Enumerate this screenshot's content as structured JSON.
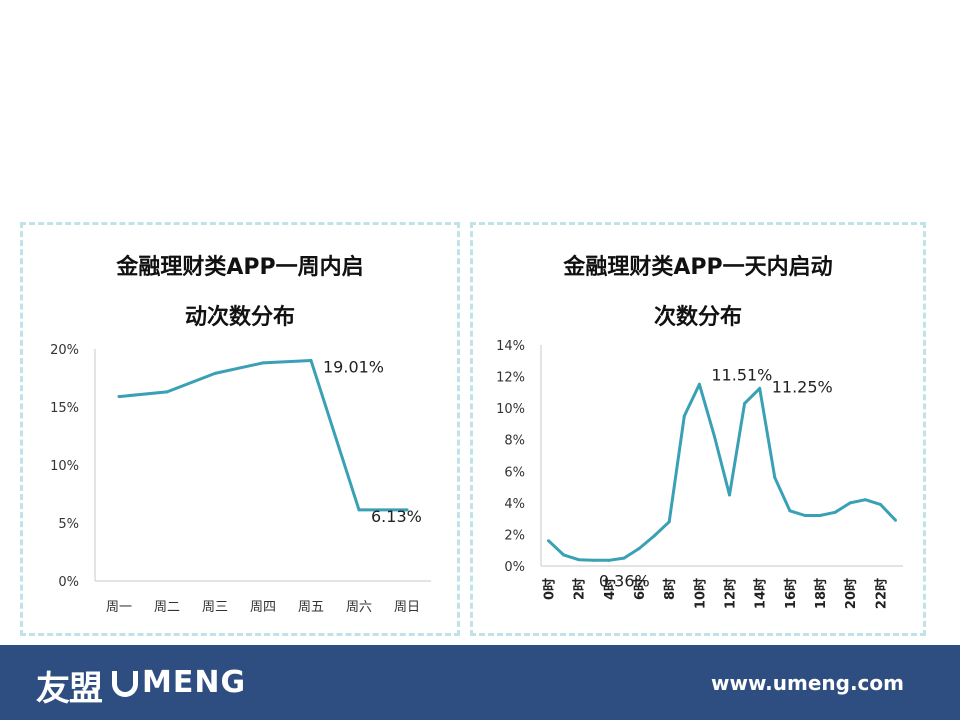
{
  "chart_data": [
    {
      "type": "line",
      "title_line1": "金融理财类APP一周内启",
      "title_line2": "动次数分布",
      "categories": [
        "周一",
        "周二",
        "周三",
        "周四",
        "周五",
        "周六",
        "周日"
      ],
      "values": [
        15.9,
        16.3,
        17.9,
        18.8,
        19.01,
        6.13,
        6.13
      ],
      "ylim": [
        0,
        20
      ],
      "yticks": [
        "0%",
        "5%",
        "10%",
        "15%",
        "20%"
      ],
      "ytick_values": [
        0,
        5,
        10,
        15,
        20
      ],
      "annotations": [
        {
          "index": 4,
          "text": "19.01%"
        },
        {
          "index": 5,
          "text": "6.13%"
        }
      ],
      "line_color": "#3aa0b5"
    },
    {
      "type": "line",
      "title_line1": "金融理财类APP一天内启动",
      "title_line2": "次数分布",
      "x": [
        0,
        1,
        2,
        3,
        4,
        5,
        6,
        7,
        8,
        9,
        10,
        11,
        12,
        13,
        14,
        15,
        16,
        17,
        18,
        19,
        20,
        21,
        22,
        23
      ],
      "values": [
        1.6,
        0.7,
        0.4,
        0.36,
        0.36,
        0.5,
        1.1,
        1.9,
        2.8,
        9.5,
        11.51,
        8.2,
        4.5,
        10.3,
        11.25,
        5.6,
        3.5,
        3.2,
        3.2,
        3.4,
        4.0,
        4.2,
        3.9,
        2.9
      ],
      "xtick_labels": [
        "0时",
        "2时",
        "4时",
        "6时",
        "8时",
        "10时",
        "12时",
        "14时",
        "16时",
        "18时",
        "20时",
        "22时"
      ],
      "xtick_hours": [
        0,
        2,
        4,
        6,
        8,
        10,
        12,
        14,
        16,
        18,
        20,
        22
      ],
      "ylim": [
        0,
        14
      ],
      "yticks": [
        "0%",
        "2%",
        "4%",
        "6%",
        "8%",
        "10%",
        "12%",
        "14%"
      ],
      "ytick_values": [
        0,
        2,
        4,
        6,
        8,
        10,
        12,
        14
      ],
      "annotations": [
        {
          "index": 4,
          "text": "0.36%"
        },
        {
          "index": 10,
          "text": "11.51%"
        },
        {
          "index": 14,
          "text": "11.25%"
        }
      ],
      "line_color": "#3aa0b5"
    }
  ],
  "footer": {
    "logo_cn": "友盟",
    "logo_en": "MENG",
    "url": "www.umeng.com",
    "background": "#2e4d80"
  }
}
